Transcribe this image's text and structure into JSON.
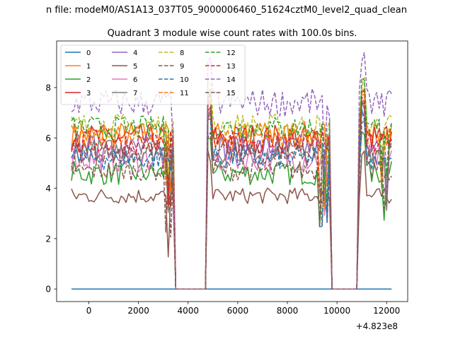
{
  "figure": {
    "suptitle": "n file: modeM0/AS1A13_037T05_9000006460_51624cztM0_level2_quad_clean",
    "title": "Quadrant 3 module wise count rates with 100.0s bins.",
    "offset_text": "+4.823e8"
  },
  "chart_data": {
    "type": "line",
    "title": "Quadrant 3 module wise count rates with 100.0s bins.",
    "xlabel": "",
    "ylabel": "",
    "x_offset": 482300000,
    "xlim": [
      -1300,
      12850
    ],
    "ylim": [
      -0.5,
      9.85
    ],
    "xticks": [
      0,
      2000,
      4000,
      6000,
      8000,
      10000,
      12000
    ],
    "yticks": [
      0,
      2,
      4,
      6,
      8
    ],
    "grid": false,
    "legend": {
      "placement": "top-left",
      "columns": 4
    },
    "segments": [
      [
        -700,
        3400
      ],
      [
        4750,
        9750
      ],
      [
        10900,
        12200
      ]
    ],
    "gaps": [
      [
        3750,
        4650
      ],
      [
        9950,
        10850
      ]
    ],
    "series": [
      {
        "name": "0",
        "color": "#1f77b4",
        "style": "solid",
        "base": 0.0,
        "amp": 0.0
      },
      {
        "name": "1",
        "color": "#ff7f0e",
        "style": "solid",
        "base": 6.1,
        "amp": 0.35
      },
      {
        "name": "2",
        "color": "#2ca02c",
        "style": "solid",
        "base": 4.6,
        "amp": 0.3
      },
      {
        "name": "3",
        "color": "#d62728",
        "style": "solid",
        "base": 6.0,
        "amp": 0.35
      },
      {
        "name": "4",
        "color": "#9467bd",
        "style": "solid",
        "base": 5.6,
        "amp": 0.35
      },
      {
        "name": "5",
        "color": "#8c564b",
        "style": "solid",
        "base": 3.7,
        "amp": 0.2
      },
      {
        "name": "6",
        "color": "#e377c2",
        "style": "solid",
        "base": 5.2,
        "amp": 0.35
      },
      {
        "name": "7",
        "color": "#7f7f7f",
        "style": "solid",
        "base": 5.5,
        "amp": 0.3
      },
      {
        "name": "8",
        "color": "#bcbd22",
        "style": "dashed",
        "base": 6.5,
        "amp": 0.3
      },
      {
        "name": "9",
        "color": "#8c564b",
        "style": "dashed",
        "base": 4.7,
        "amp": 0.25
      },
      {
        "name": "10",
        "color": "#1f77b4",
        "style": "dashed",
        "base": 5.2,
        "amp": 0.3
      },
      {
        "name": "11",
        "color": "#ff7f0e",
        "style": "dashed",
        "base": 6.1,
        "amp": 0.3
      },
      {
        "name": "12",
        "color": "#2ca02c",
        "style": "dashed",
        "base": 6.4,
        "amp": 0.3
      },
      {
        "name": "13",
        "color": "#d62728",
        "style": "dashed",
        "base": 5.8,
        "amp": 0.3
      },
      {
        "name": "14",
        "color": "#9467bd",
        "style": "dashed",
        "base": 7.4,
        "amp": 0.35
      },
      {
        "name": "15",
        "color": "#8c564b",
        "style": "dashed",
        "base": 5.4,
        "amp": 0.3
      }
    ]
  }
}
